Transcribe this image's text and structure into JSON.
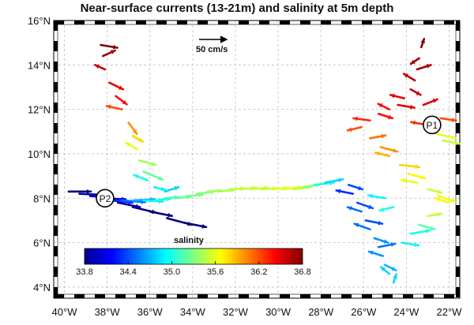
{
  "title": "Near-surface currents (13-21m) and salinity at 5m depth",
  "scale": {
    "label": "50 cm/s",
    "speed": 50
  },
  "axes": {
    "lon_range": [
      -40.5,
      -21.5
    ],
    "lat_range": [
      3.5,
      16
    ],
    "x_ticks": [
      {
        "value": -40,
        "label": "40°W"
      },
      {
        "value": -38,
        "label": "38°W"
      },
      {
        "value": -36,
        "label": "36°W"
      },
      {
        "value": -34,
        "label": "34°W"
      },
      {
        "value": -32,
        "label": "32°W"
      },
      {
        "value": -30,
        "label": "30°W"
      },
      {
        "value": -28,
        "label": "28°W"
      },
      {
        "value": -26,
        "label": "26°W"
      },
      {
        "value": -24,
        "label": "24°W"
      },
      {
        "value": -22,
        "label": "22°W"
      }
    ],
    "y_ticks": [
      {
        "value": 4,
        "label": "4°N"
      },
      {
        "value": 6,
        "label": "6°N"
      },
      {
        "value": 8,
        "label": "8°N"
      },
      {
        "value": 10,
        "label": "10°N"
      },
      {
        "value": 12,
        "label": "12°N"
      },
      {
        "value": 14,
        "label": "14°N"
      },
      {
        "value": 16,
        "label": "16°N"
      }
    ],
    "grid": true
  },
  "colorbar": {
    "label": "salinity",
    "min": 33.8,
    "max": 36.8,
    "ticks": [
      "33.8",
      "34.4",
      "35.0",
      "35.6",
      "36.2",
      "36.8"
    ],
    "colormap": "jet"
  },
  "points": [
    {
      "label": "P1",
      "lon": -22.8,
      "lat": 11.3
    },
    {
      "label": "P2",
      "lon": -38.1,
      "lat": 8.0
    }
  ],
  "chart_data": {
    "type": "quiver",
    "tracks": [
      {
        "name": "",
        "points": [
          [
            -38.3,
            14.9
          ],
          [
            -38.2,
            14.4
          ],
          [
            -38.1,
            13.8
          ],
          [
            -37.9,
            13.2
          ],
          [
            -37.6,
            12.6
          ],
          [
            -37.3,
            12.0
          ],
          [
            -37.0,
            11.4
          ],
          [
            -36.8,
            10.8
          ],
          [
            -36.6,
            10.2
          ],
          [
            -36.5,
            9.7
          ],
          [
            -36.3,
            9.2
          ],
          [
            -36.1,
            8.8
          ],
          [
            -35.8,
            8.5
          ],
          [
            -35.3,
            8.3
          ]
        ],
        "sal": [
          36.8,
          36.7,
          36.6,
          36.5,
          36.4,
          36.2,
          36.0,
          35.8,
          35.6,
          35.4,
          35.2,
          35.0,
          34.9,
          34.8
        ],
        "u": [
          30,
          22,
          -18,
          25,
          20,
          -28,
          15,
          18,
          -20,
          30,
          35,
          -25,
          20,
          25
        ],
        "v": [
          -5,
          10,
          8,
          -12,
          -15,
          6,
          -20,
          -10,
          12,
          -8,
          -15,
          10,
          -5,
          8
        ]
      },
      {
        "name": "",
        "points": [
          [
            -39.8,
            8.3
          ],
          [
            -39.3,
            8.2
          ],
          [
            -38.8,
            8.1
          ],
          [
            -38.3,
            8.0
          ],
          [
            -37.8,
            7.9
          ],
          [
            -37.3,
            7.9
          ],
          [
            -36.8,
            7.9
          ],
          [
            -36.3,
            7.9
          ],
          [
            -35.8,
            7.9
          ],
          [
            -35.3,
            8.0
          ],
          [
            -34.8,
            8.0
          ],
          [
            -34.3,
            8.1
          ],
          [
            -33.8,
            8.2
          ],
          [
            -33.3,
            8.3
          ],
          [
            -32.8,
            8.3
          ],
          [
            -32.3,
            8.4
          ],
          [
            -31.8,
            8.4
          ],
          [
            -31.3,
            8.4
          ],
          [
            -30.8,
            8.4
          ],
          [
            -30.3,
            8.4
          ],
          [
            -29.8,
            8.4
          ],
          [
            -29.3,
            8.4
          ],
          [
            -28.8,
            8.5
          ],
          [
            -28.3,
            8.6
          ],
          [
            -27.8,
            8.7
          ]
        ],
        "sal": [
          33.8,
          33.9,
          34.0,
          34.1,
          34.3,
          34.5,
          34.7,
          34.9,
          35.0,
          35.1,
          35.2,
          35.3,
          35.3,
          35.4,
          35.4,
          35.5,
          35.5,
          35.5,
          35.5,
          35.6,
          35.6,
          35.5,
          35.3,
          35.0,
          34.8
        ],
        "u": [
          40,
          45,
          40,
          45,
          38,
          42,
          40,
          35,
          30,
          25,
          28,
          30,
          32,
          25,
          30,
          28,
          30,
          32,
          28,
          30,
          35,
          32,
          30,
          35,
          32
        ],
        "v": [
          0,
          -2,
          -3,
          -2,
          -4,
          -3,
          2,
          -2,
          3,
          2,
          3,
          2,
          4,
          2,
          3,
          2,
          3,
          3,
          2,
          3,
          4,
          4,
          5,
          4,
          6
        ]
      },
      {
        "name": "",
        "points": [
          [
            -37.5,
            7.8
          ],
          [
            -36.8,
            7.6
          ],
          [
            -36.0,
            7.4
          ],
          [
            -35.2,
            7.1
          ],
          [
            -34.4,
            6.9
          ]
        ],
        "sal": [
          33.9,
          33.8,
          33.8,
          33.8,
          33.8
        ],
        "u": [
          40,
          42,
          40,
          45,
          40
        ],
        "v": [
          -8,
          -10,
          -8,
          -12,
          -8
        ]
      },
      {
        "name": "",
        "points": [
          [
            -23.3,
            14.8
          ],
          [
            -23.4,
            14.3
          ],
          [
            -23.5,
            13.8
          ],
          [
            -23.6,
            13.3
          ],
          [
            -23.8,
            12.9
          ],
          [
            -24.1,
            12.5
          ],
          [
            -24.4,
            12.2
          ],
          [
            -24.8,
            12.0
          ],
          [
            -25.3,
            11.8
          ],
          [
            -25.7,
            11.5
          ],
          [
            -26.1,
            11.2
          ],
          [
            -25.7,
            10.7
          ],
          [
            -25.2,
            10.3
          ],
          [
            -24.8,
            9.9
          ],
          [
            -24.3,
            9.5
          ],
          [
            -23.9,
            9.1
          ],
          [
            -23.5,
            8.7
          ],
          [
            -23.0,
            8.4
          ],
          [
            -22.5,
            8.1
          ],
          [
            -22.0,
            7.8
          ],
          [
            -22.3,
            10.6
          ],
          [
            -22.6,
            10.9
          ],
          [
            -23.0,
            11.3
          ],
          [
            -22.4,
            11.6
          ],
          [
            -23.2,
            12.2
          ]
        ],
        "sal": [
          36.8,
          36.7,
          36.7,
          36.6,
          36.6,
          36.5,
          36.5,
          36.4,
          36.4,
          36.3,
          36.2,
          36.1,
          36.0,
          35.9,
          35.8,
          35.7,
          35.6,
          35.5,
          35.6,
          35.7,
          35.5,
          35.6,
          36.3,
          36.2,
          36.5
        ],
        "u": [
          5,
          -15,
          25,
          -20,
          18,
          -25,
          30,
          -20,
          25,
          -30,
          -25,
          28,
          30,
          -25,
          35,
          30,
          -28,
          25,
          30,
          -25,
          30,
          35,
          -30,
          28,
          25
        ],
        "v": [
          15,
          -10,
          8,
          12,
          -10,
          6,
          -5,
          10,
          -8,
          4,
          -6,
          5,
          -8,
          6,
          -4,
          -8,
          5,
          -6,
          -10,
          8,
          -6,
          -8,
          5,
          -4,
          10
        ]
      },
      {
        "name": "",
        "points": [
          [
            -26.7,
            8.6
          ],
          [
            -26.5,
            8.2
          ],
          [
            -26.3,
            7.8
          ],
          [
            -26.1,
            7.4
          ],
          [
            -25.9,
            7.0
          ],
          [
            -25.7,
            6.6
          ],
          [
            -25.5,
            6.2
          ],
          [
            -25.3,
            5.8
          ],
          [
            -25.1,
            5.4
          ],
          [
            -25.0,
            5.0
          ],
          [
            -24.8,
            4.6
          ],
          [
            -24.6,
            4.2
          ],
          [
            -24.2,
            6.0
          ],
          [
            -23.8,
            6.4
          ],
          [
            -23.4,
            6.8
          ],
          [
            -23.0,
            7.2
          ],
          [
            -24.6,
            7.6
          ],
          [
            -25.0,
            8.0
          ]
        ],
        "sal": [
          34.4,
          34.3,
          34.4,
          34.5,
          34.4,
          34.5,
          34.6,
          34.5,
          34.6,
          34.7,
          34.8,
          34.8,
          34.9,
          35.0,
          35.2,
          35.5,
          35.0,
          34.9
        ],
        "u": [
          25,
          -30,
          28,
          -25,
          30,
          -28,
          25,
          30,
          -25,
          20,
          -15,
          5,
          30,
          35,
          28,
          25,
          -25,
          -30
        ],
        "v": [
          -8,
          6,
          -10,
          8,
          -6,
          10,
          -8,
          6,
          8,
          -10,
          12,
          15,
          -5,
          6,
          -8,
          4,
          -6,
          5
        ]
      }
    ]
  }
}
